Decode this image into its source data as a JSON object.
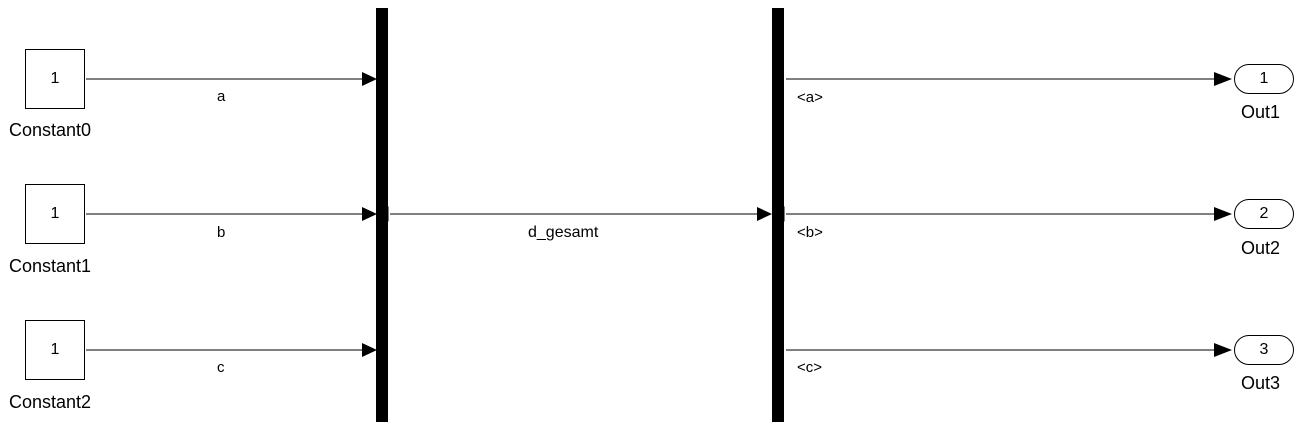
{
  "diagram": {
    "constants": [
      {
        "value": "1",
        "name": "Constant0",
        "signal": "a"
      },
      {
        "value": "1",
        "name": "Constant1",
        "signal": "b"
      },
      {
        "value": "1",
        "name": "Constant2",
        "signal": "c"
      }
    ],
    "bus_signal": "d_gesamt",
    "selector_outputs": [
      "<a>",
      "<b>",
      "<c>"
    ],
    "outports": [
      {
        "number": "1",
        "name": "Out1"
      },
      {
        "number": "2",
        "name": "Out2"
      },
      {
        "number": "3",
        "name": "Out3"
      }
    ]
  }
}
